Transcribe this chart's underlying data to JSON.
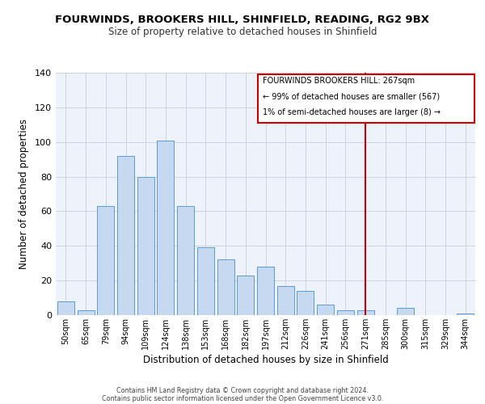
{
  "title1": "FOURWINDS, BROOKERS HILL, SHINFIELD, READING, RG2 9BX",
  "title2": "Size of property relative to detached houses in Shinfield",
  "xlabel": "Distribution of detached houses by size in Shinfield",
  "ylabel": "Number of detached properties",
  "categories": [
    "50sqm",
    "65sqm",
    "79sqm",
    "94sqm",
    "109sqm",
    "124sqm",
    "138sqm",
    "153sqm",
    "168sqm",
    "182sqm",
    "197sqm",
    "212sqm",
    "226sqm",
    "241sqm",
    "256sqm",
    "271sqm",
    "285sqm",
    "300sqm",
    "315sqm",
    "329sqm",
    "344sqm"
  ],
  "values": [
    8,
    3,
    63,
    92,
    80,
    101,
    63,
    39,
    32,
    23,
    28,
    17,
    14,
    6,
    3,
    3,
    0,
    4,
    0,
    0,
    1
  ],
  "bar_color": "#c6d9f0",
  "bar_edge_color": "#5b9bd5",
  "vline_x": 15,
  "vline_color": "#cc0000",
  "annotation_title": "FOURWINDS BROOKERS HILL: 267sqm",
  "annotation_line1": "← 99% of detached houses are smaller (567)",
  "annotation_line2": "1% of semi-detached houses are larger (8) →",
  "annotation_box_color": "#cc0000",
  "ylim": [
    0,
    140
  ],
  "yticks": [
    0,
    20,
    40,
    60,
    80,
    100,
    120,
    140
  ],
  "background_color": "#eef3fb",
  "footer1": "Contains HM Land Registry data © Crown copyright and database right 2024.",
  "footer2": "Contains public sector information licensed under the Open Government Licence v3.0."
}
